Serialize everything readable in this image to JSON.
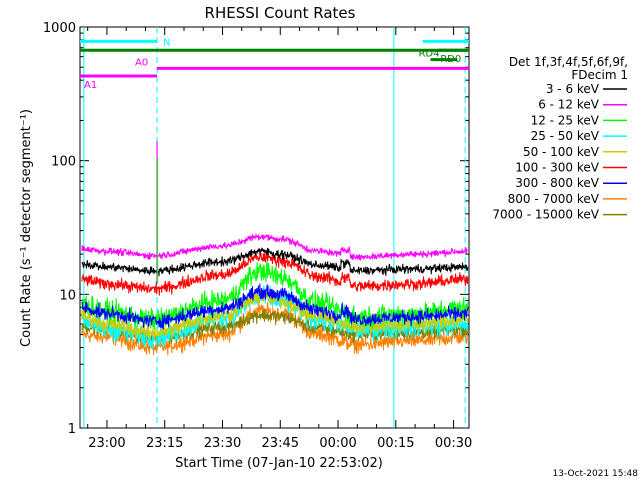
{
  "chart_data": {
    "type": "line",
    "title": "RHESSI Count Rates",
    "xlabel": "Start Time (07-Jan-10 22:53:02)",
    "ylabel": "Count Rate (s⁻¹ detector segment⁻¹)",
    "yscale": "log",
    "ylim": [
      1,
      1000
    ],
    "xlim_minutes": [
      -7,
      94
    ],
    "x_origin_time": "23:00",
    "x_ticks": [
      {
        "minute": 0,
        "label": "23:00"
      },
      {
        "minute": 15,
        "label": "23:15"
      },
      {
        "minute": 30,
        "label": "23:30"
      },
      {
        "minute": 45,
        "label": "23:45"
      },
      {
        "minute": 60,
        "label": "00:00"
      },
      {
        "minute": 75,
        "label": "00:15"
      },
      {
        "minute": 90,
        "label": "00:30"
      }
    ],
    "y_ticks": [
      {
        "value": 1,
        "label": "1"
      },
      {
        "value": 10,
        "label": "10"
      },
      {
        "value": 100,
        "label": "100"
      },
      {
        "value": 1000,
        "label": "1000"
      }
    ],
    "legend_header": [
      "Det 1f,3f,4f,5f,6f,9f,",
      "FDecim 1"
    ],
    "legend_position": "right",
    "series": [
      {
        "name": "3 - 6 keV",
        "color": "#000000",
        "base": 16,
        "flare_peak": 21,
        "noise": 0.05,
        "anchors": [
          [
            -7,
            17
          ],
          [
            0,
            16
          ],
          [
            12,
            15
          ],
          [
            30,
            17.5
          ],
          [
            40,
            21
          ],
          [
            45,
            20
          ],
          [
            55,
            16.5
          ],
          [
            65,
            15
          ],
          [
            80,
            15.5
          ],
          [
            94,
            16
          ]
        ]
      },
      {
        "name": "6 - 12 keV",
        "color": "#ff00ff",
        "base": 20,
        "flare_peak": 27,
        "noise": 0.04,
        "anchors": [
          [
            -7,
            22
          ],
          [
            0,
            21
          ],
          [
            12,
            19.5
          ],
          [
            30,
            23
          ],
          [
            40,
            27
          ],
          [
            45,
            26
          ],
          [
            55,
            21
          ],
          [
            65,
            19
          ],
          [
            80,
            20
          ],
          [
            94,
            21
          ]
        ]
      },
      {
        "name": "12 - 25 keV",
        "color": "#00ff00",
        "base": 7,
        "flare_peak": 15,
        "noise": 0.12,
        "anchors": [
          [
            -7,
            8.5
          ],
          [
            0,
            7.5
          ],
          [
            12,
            6.5
          ],
          [
            30,
            9
          ],
          [
            40,
            15
          ],
          [
            45,
            13.5
          ],
          [
            55,
            8.5
          ],
          [
            65,
            6.8
          ],
          [
            80,
            7.2
          ],
          [
            94,
            8
          ]
        ]
      },
      {
        "name": "25 - 50 keV",
        "color": "#00ffff",
        "base": 5.5,
        "flare_peak": 9.5,
        "noise": 0.13,
        "anchors": [
          [
            -7,
            6.5
          ],
          [
            0,
            5.5
          ],
          [
            12,
            4.8
          ],
          [
            30,
            6.8
          ],
          [
            40,
            9.5
          ],
          [
            45,
            9
          ],
          [
            55,
            6.5
          ],
          [
            65,
            5.5
          ],
          [
            80,
            5.8
          ],
          [
            94,
            6
          ]
        ]
      },
      {
        "name": "50 - 100 keV",
        "color": "#cccc00",
        "base": 5.8,
        "flare_peak": 9.5,
        "noise": 0.09,
        "anchors": [
          [
            -7,
            7
          ],
          [
            0,
            6
          ],
          [
            12,
            5.2
          ],
          [
            30,
            7
          ],
          [
            40,
            9.5
          ],
          [
            45,
            9
          ],
          [
            55,
            6.8
          ],
          [
            65,
            5.8
          ],
          [
            80,
            6
          ],
          [
            94,
            6.5
          ]
        ]
      },
      {
        "name": "100 - 300 keV",
        "color": "#ff0000",
        "base": 12,
        "flare_peak": 19,
        "noise": 0.07,
        "anchors": [
          [
            -7,
            13
          ],
          [
            0,
            12
          ],
          [
            12,
            11
          ],
          [
            30,
            14
          ],
          [
            40,
            19
          ],
          [
            45,
            18
          ],
          [
            55,
            13.5
          ],
          [
            65,
            11.5
          ],
          [
            80,
            12
          ],
          [
            94,
            13
          ]
        ]
      },
      {
        "name": "300 - 800 keV",
        "color": "#0000ff",
        "base": 7,
        "flare_peak": 10.5,
        "noise": 0.08,
        "anchors": [
          [
            -7,
            8
          ],
          [
            0,
            7.2
          ],
          [
            12,
            6.3
          ],
          [
            30,
            7.8
          ],
          [
            40,
            10.5
          ],
          [
            45,
            10
          ],
          [
            55,
            7.5
          ],
          [
            65,
            6.5
          ],
          [
            80,
            6.8
          ],
          [
            94,
            7.2
          ]
        ]
      },
      {
        "name": "800 - 7000 keV",
        "color": "#ff8000",
        "base": 4.5,
        "flare_peak": 7.5,
        "noise": 0.09,
        "anchors": [
          [
            -7,
            5
          ],
          [
            0,
            4.8
          ],
          [
            12,
            4
          ],
          [
            30,
            5
          ],
          [
            40,
            7.5
          ],
          [
            45,
            7.2
          ],
          [
            55,
            5
          ],
          [
            65,
            4.2
          ],
          [
            80,
            4.5
          ],
          [
            94,
            4.8
          ]
        ]
      },
      {
        "name": "7000 - 15000 keV",
        "color": "#808000",
        "base": 5,
        "flare_peak": 7,
        "noise": 0.08,
        "anchors": [
          [
            -7,
            5.8
          ],
          [
            0,
            5.4
          ],
          [
            12,
            4.7
          ],
          [
            30,
            5.7
          ],
          [
            40,
            7
          ],
          [
            45,
            6.8
          ],
          [
            55,
            5.6
          ],
          [
            65,
            5
          ],
          [
            80,
            5.2
          ],
          [
            94,
            5.5
          ]
        ]
      }
    ],
    "spike": {
      "minute": 13,
      "peak_value": 140,
      "colors": [
        "#ff00ff",
        "#00ff00"
      ]
    },
    "segment_lines": [
      {
        "label": "N",
        "color": "#00ffff",
        "y_value": 780,
        "x_start": -7,
        "x_end": 13
      },
      {
        "label": "",
        "color": "#00ffff",
        "y_value": 780,
        "x_start": 82,
        "x_end": 94
      },
      {
        "label": "",
        "color": "#008000",
        "y_value": 670,
        "x_start": -7,
        "x_end": 94
      },
      {
        "label": "RD0",
        "color": "#008000",
        "y_value": 670,
        "x_start": 86,
        "x_end": 94
      },
      {
        "label": "RD4",
        "color": "#008000",
        "y_value": 570,
        "x_start": 84,
        "x_end": 91
      },
      {
        "label": "A0",
        "color": "#ff00ff",
        "y_value": 490,
        "x_start": 13,
        "x_end": 94
      },
      {
        "label": "A1",
        "color": "#ff00ff",
        "y_value": 430,
        "x_start": -7,
        "x_end": 13
      }
    ],
    "vertical_markers": [
      {
        "minute": -6,
        "color": "#00ffff",
        "style": "solid"
      },
      {
        "minute": 13,
        "color": "#00ffff",
        "style": "dashed"
      },
      {
        "minute": 74.5,
        "color": "#00ffff",
        "style": "solid"
      },
      {
        "minute": 93,
        "color": "#00ffff",
        "style": "dashed"
      }
    ],
    "footer_timestamp": "13-Oct-2021 15:48"
  }
}
